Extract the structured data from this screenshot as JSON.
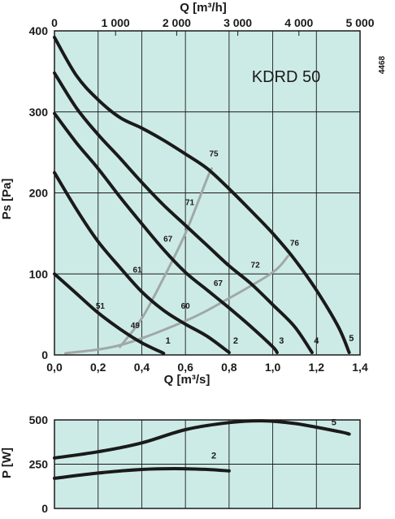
{
  "chart_data": [
    {
      "type": "line",
      "model_label": "KDRD 50",
      "side_code": "4468",
      "xlabel": "Q [m³/s]",
      "x2label": "Q [m³/h]",
      "ylabel": "Ps [Pa]",
      "xlim": [
        0,
        1.4
      ],
      "ylim": [
        0,
        400
      ],
      "x2lim": [
        0,
        5000
      ],
      "xticks": [
        "0,0",
        "0,2",
        "0,4",
        "0,6",
        "0,8",
        "1,0",
        "1,2",
        "1,4"
      ],
      "x2ticks": [
        "0",
        "1 000",
        "2 000",
        "3 000",
        "4 000",
        "5 000"
      ],
      "yticks": [
        "0",
        "100",
        "200",
        "300",
        "400"
      ],
      "grid": true,
      "background_color": "#cdebe6",
      "curve_color": "#1a1a1a",
      "noise_line_color": "#a0a8a8",
      "series": [
        {
          "name": "1",
          "points": [
            [
              0.0,
              100
            ],
            [
              0.1,
              76
            ],
            [
              0.2,
              52
            ],
            [
              0.3,
              32
            ],
            [
              0.4,
              15
            ],
            [
              0.5,
              2
            ]
          ]
        },
        {
          "name": "2",
          "points": [
            [
              0.0,
              225
            ],
            [
              0.1,
              180
            ],
            [
              0.2,
              140
            ],
            [
              0.3,
              108
            ],
            [
              0.4,
              78
            ],
            [
              0.5,
              55
            ],
            [
              0.6,
              38
            ],
            [
              0.7,
              23
            ],
            [
              0.8,
              3
            ]
          ]
        },
        {
          "name": "3",
          "points": [
            [
              0.0,
              298
            ],
            [
              0.1,
              262
            ],
            [
              0.2,
              230
            ],
            [
              0.3,
              195
            ],
            [
              0.4,
              162
            ],
            [
              0.5,
              130
            ],
            [
              0.6,
              102
            ],
            [
              0.7,
              80
            ],
            [
              0.8,
              58
            ],
            [
              0.9,
              35
            ],
            [
              1.0,
              10
            ],
            [
              1.02,
              3
            ]
          ]
        },
        {
          "name": "4",
          "points": [
            [
              0.0,
              348
            ],
            [
              0.1,
              305
            ],
            [
              0.2,
              272
            ],
            [
              0.3,
              243
            ],
            [
              0.4,
              213
            ],
            [
              0.5,
              185
            ],
            [
              0.6,
              160
            ],
            [
              0.7,
              135
            ],
            [
              0.8,
              110
            ],
            [
              0.9,
              88
            ],
            [
              1.0,
              62
            ],
            [
              1.1,
              35
            ],
            [
              1.18,
              3
            ]
          ]
        },
        {
          "name": "5",
          "points": [
            [
              0.0,
              392
            ],
            [
              0.1,
              345
            ],
            [
              0.2,
              315
            ],
            [
              0.3,
              293
            ],
            [
              0.4,
              280
            ],
            [
              0.5,
              265
            ],
            [
              0.6,
              248
            ],
            [
              0.7,
              230
            ],
            [
              0.8,
              205
            ],
            [
              0.9,
              178
            ],
            [
              1.0,
              150
            ],
            [
              1.1,
              118
            ],
            [
              1.2,
              80
            ],
            [
              1.3,
              35
            ],
            [
              1.35,
              3
            ]
          ]
        }
      ],
      "noise_lines": [
        {
          "points": [
            [
              0.3,
              10
            ],
            [
              0.4,
              45
            ],
            [
              0.5,
              95
            ],
            [
              0.6,
              150
            ],
            [
              0.7,
              218
            ],
            [
              0.72,
              230
            ]
          ]
        },
        {
          "points": [
            [
              0.05,
              2
            ],
            [
              0.3,
              12
            ],
            [
              0.6,
              42
            ],
            [
              0.8,
              70
            ],
            [
              1.0,
              102
            ],
            [
              1.07,
              122
            ]
          ]
        }
      ],
      "annotations": [
        {
          "text": "75",
          "x": 0.73,
          "y": 245
        },
        {
          "text": "71",
          "x": 0.62,
          "y": 185
        },
        {
          "text": "67",
          "x": 0.52,
          "y": 140
        },
        {
          "text": "61",
          "x": 0.38,
          "y": 102
        },
        {
          "text": "51",
          "x": 0.21,
          "y": 57
        },
        {
          "text": "49",
          "x": 0.37,
          "y": 33
        },
        {
          "text": "76",
          "x": 1.1,
          "y": 135
        },
        {
          "text": "72",
          "x": 0.92,
          "y": 108
        },
        {
          "text": "67",
          "x": 0.75,
          "y": 85
        },
        {
          "text": "60",
          "x": 0.6,
          "y": 57
        }
      ],
      "curve_labels": [
        {
          "text": "1",
          "x": 0.52,
          "y": 14
        },
        {
          "text": "2",
          "x": 0.83,
          "y": 14
        },
        {
          "text": "3",
          "x": 1.04,
          "y": 14
        },
        {
          "text": "4",
          "x": 1.2,
          "y": 14
        },
        {
          "text": "5",
          "x": 1.36,
          "y": 17
        }
      ]
    },
    {
      "type": "line",
      "ylabel": "P [W]",
      "xlim": [
        0,
        1.4
      ],
      "ylim": [
        0,
        500
      ],
      "yticks": [
        "0",
        "250",
        "500"
      ],
      "grid": true,
      "series": [
        {
          "name": "5",
          "points": [
            [
              0.0,
              285
            ],
            [
              0.2,
              320
            ],
            [
              0.4,
              370
            ],
            [
              0.6,
              445
            ],
            [
              0.8,
              485
            ],
            [
              0.95,
              495
            ],
            [
              1.1,
              480
            ],
            [
              1.3,
              435
            ],
            [
              1.35,
              420
            ]
          ]
        },
        {
          "name": "2",
          "points": [
            [
              0.0,
              170
            ],
            [
              0.2,
              200
            ],
            [
              0.4,
              220
            ],
            [
              0.55,
              225
            ],
            [
              0.7,
              220
            ],
            [
              0.8,
              212
            ]
          ]
        }
      ],
      "curve_labels": [
        {
          "text": "5",
          "x": 1.28,
          "y": 470
        },
        {
          "text": "2",
          "x": 0.73,
          "y": 282
        }
      ]
    }
  ]
}
